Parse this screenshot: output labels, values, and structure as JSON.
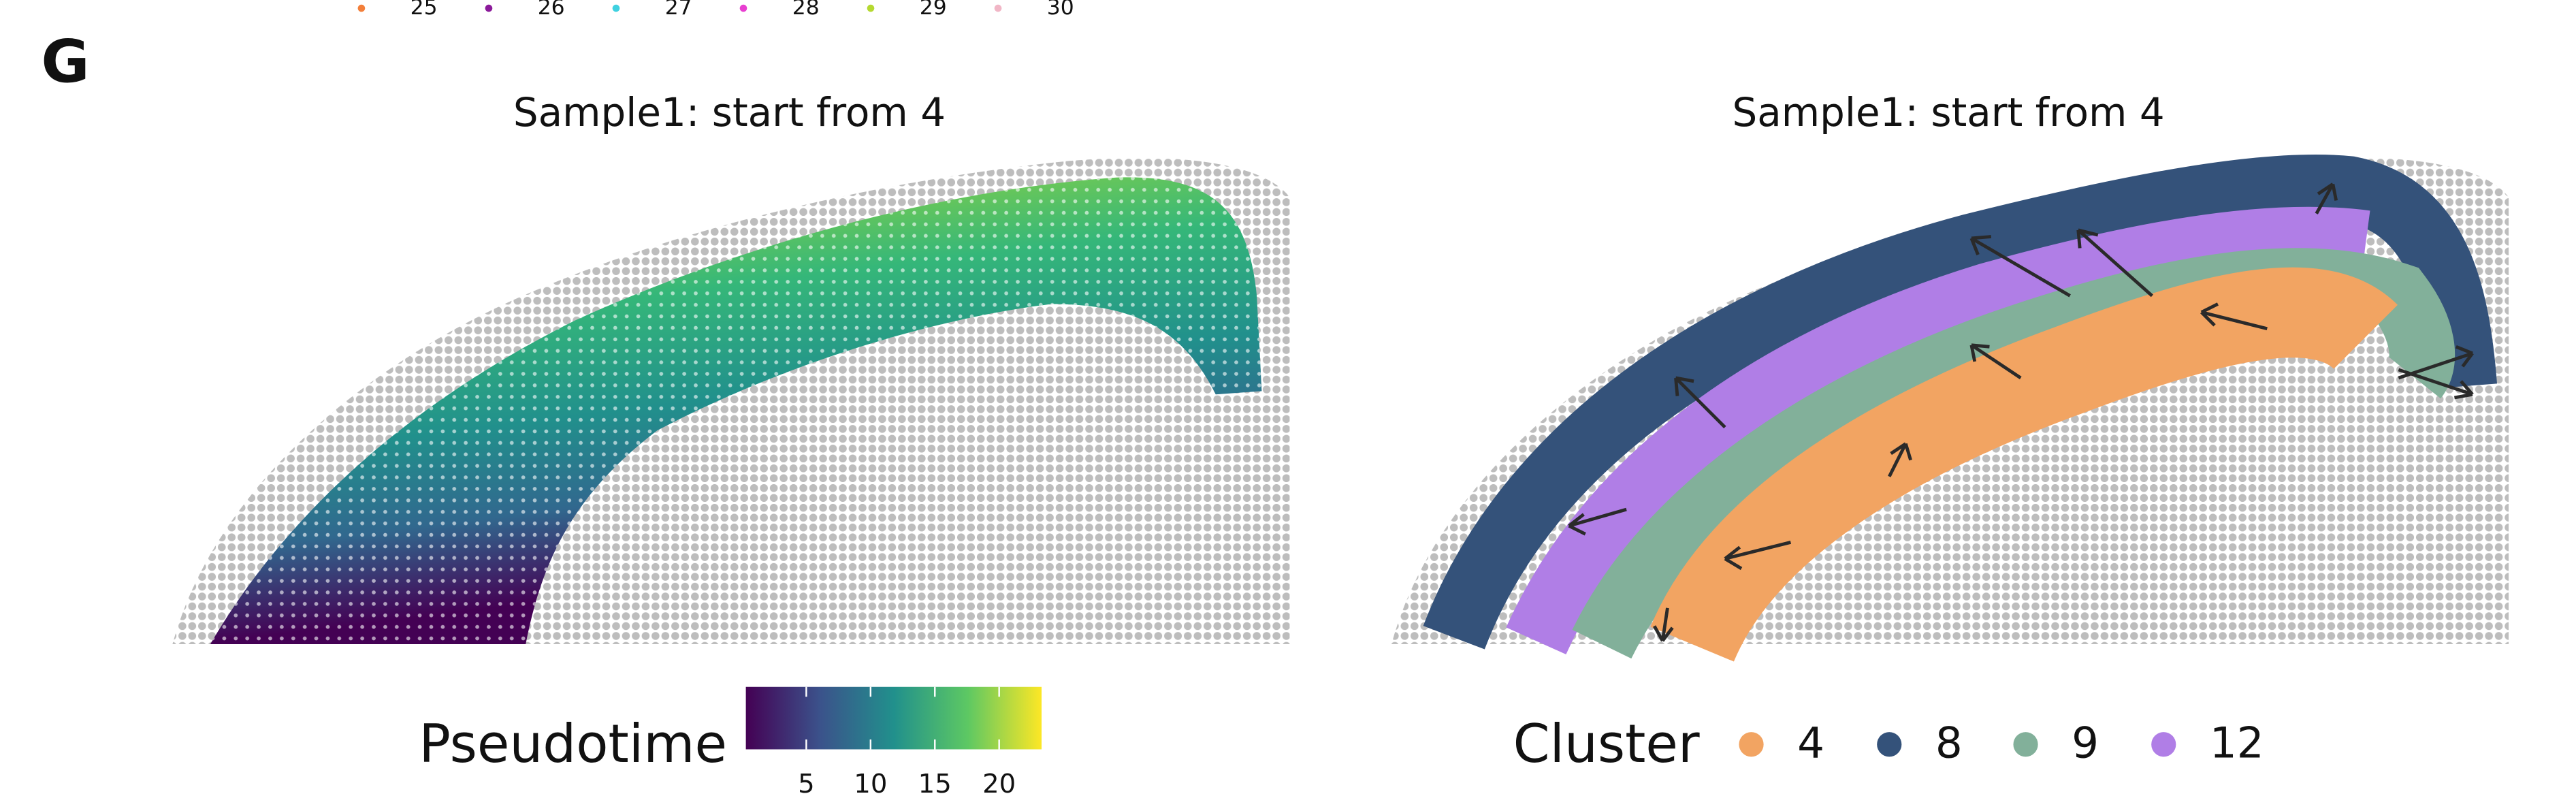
{
  "panel_label": "G",
  "top_legend": [
    {
      "label": "25",
      "color": "#f37f3a"
    },
    {
      "label": "26",
      "color": "#8b1a9a"
    },
    {
      "label": "27",
      "color": "#3fd1e0"
    },
    {
      "label": "28",
      "color": "#e83fd1"
    },
    {
      "label": "29",
      "color": "#b5d930"
    },
    {
      "label": "30",
      "color": "#f1b6c6"
    }
  ],
  "plots": [
    {
      "title": "Sample1: start from 4",
      "legend_title": "Pseudotime",
      "clim": [
        0.3,
        23.3
      ],
      "cticks": [
        5,
        10,
        15,
        20
      ]
    },
    {
      "title": "Sample1: start from 4",
      "legend_title": "Cluster",
      "clusters": [
        {
          "label": "4",
          "color": "#f2a462"
        },
        {
          "label": "8",
          "color": "#34527a"
        },
        {
          "label": "9",
          "color": "#82b09a"
        },
        {
          "label": "12",
          "color": "#b07ee6"
        }
      ]
    }
  ]
}
